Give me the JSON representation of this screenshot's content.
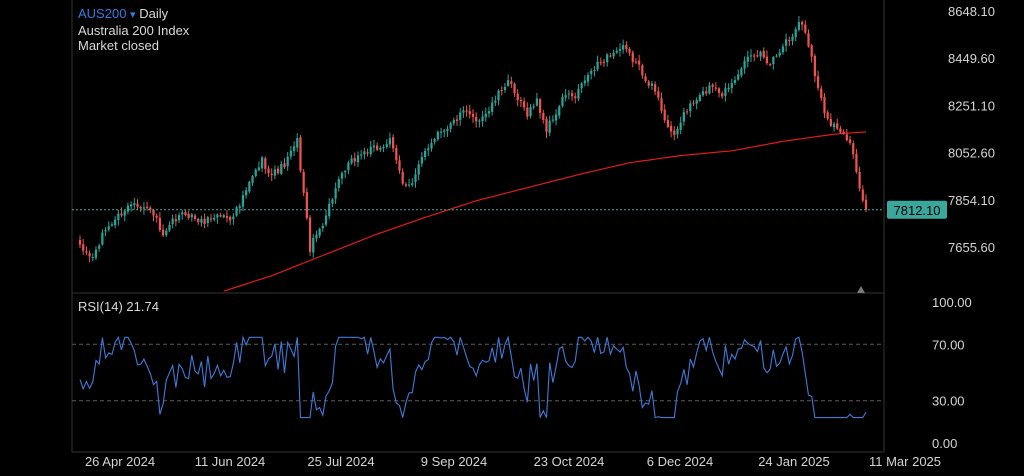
{
  "header": {
    "symbol": "AUS200",
    "dropdown_glyph": "▾",
    "interval": "Daily",
    "name": "Australia 200 Index",
    "status": "Market closed"
  },
  "rsi_header": {
    "label": "RSI(14)",
    "value": "21.74"
  },
  "colors": {
    "background": "#000000",
    "up": "#26a69a",
    "down": "#ef5350",
    "ma": "#e01b1b",
    "rsi": "#3d7bd9",
    "grid": "#2a2a2a",
    "price_tag": "#3aa79d"
  },
  "chart_data": [
    {
      "type": "candlestick",
      "title": "AUS200 · Daily",
      "subtitle": "Australia 200 Index",
      "x_ticks": [
        "26 Apr 2024",
        "11 Jun 2024",
        "25 Jul 2024",
        "9 Sep 2024",
        "23 Oct 2024",
        "6 Dec 2024",
        "24 Jan 2025",
        "11 Mar 2025"
      ],
      "y_ticks": [
        "8648.10",
        "8449.60",
        "8251.10",
        "8052.60",
        "7854.10",
        "7655.60"
      ],
      "ylim": [
        7470,
        8700
      ],
      "last_price": "7812.10",
      "grid": true,
      "anchors": [
        [
          0,
          7650
        ],
        [
          4,
          7610
        ],
        [
          8,
          7730
        ],
        [
          13,
          7800
        ],
        [
          17,
          7850
        ],
        [
          19,
          7830
        ],
        [
          23,
          7800
        ],
        [
          26,
          7690
        ],
        [
          29,
          7760
        ],
        [
          33,
          7800
        ],
        [
          38,
          7760
        ],
        [
          43,
          7790
        ],
        [
          47,
          7780
        ],
        [
          50,
          7830
        ],
        [
          54,
          7950
        ],
        [
          57,
          8020
        ],
        [
          60,
          7960
        ],
        [
          64,
          8000
        ],
        [
          68,
          8100
        ],
        [
          70,
          7880
        ],
        [
          72,
          7650
        ],
        [
          76,
          7760
        ],
        [
          80,
          7900
        ],
        [
          84,
          8000
        ],
        [
          88,
          8050
        ],
        [
          93,
          8070
        ],
        [
          97,
          8100
        ],
        [
          101,
          7930
        ],
        [
          104,
          7920
        ],
        [
          108,
          8060
        ],
        [
          112,
          8140
        ],
        [
          116,
          8170
        ],
        [
          120,
          8220
        ],
        [
          124,
          8190
        ],
        [
          128,
          8230
        ],
        [
          132,
          8320
        ],
        [
          134,
          8360
        ],
        [
          136,
          8290
        ],
        [
          140,
          8220
        ],
        [
          143,
          8270
        ],
        [
          146,
          8150
        ],
        [
          149,
          8220
        ],
        [
          152,
          8300
        ],
        [
          155,
          8280
        ],
        [
          158,
          8360
        ],
        [
          162,
          8420
        ],
        [
          166,
          8470
        ],
        [
          170,
          8490
        ],
        [
          174,
          8430
        ],
        [
          177,
          8370
        ],
        [
          180,
          8310
        ],
        [
          183,
          8200
        ],
        [
          186,
          8110
        ],
        [
          189,
          8220
        ],
        [
          192,
          8260
        ],
        [
          195,
          8300
        ],
        [
          198,
          8340
        ],
        [
          201,
          8300
        ],
        [
          204,
          8350
        ],
        [
          207,
          8420
        ],
        [
          210,
          8450
        ],
        [
          213,
          8470
        ],
        [
          216,
          8430
        ],
        [
          220,
          8510
        ],
        [
          223,
          8540
        ],
        [
          225,
          8610
        ],
        [
          227,
          8560
        ],
        [
          229,
          8460
        ],
        [
          231,
          8320
        ],
        [
          233,
          8230
        ],
        [
          235,
          8180
        ],
        [
          237,
          8160
        ],
        [
          239,
          8120
        ],
        [
          241,
          8090
        ],
        [
          243,
          7970
        ],
        [
          246,
          7812
        ]
      ],
      "ma_anchors": [
        [
          45,
          7470
        ],
        [
          60,
          7535
        ],
        [
          76,
          7620
        ],
        [
          92,
          7705
        ],
        [
          108,
          7780
        ],
        [
          124,
          7850
        ],
        [
          140,
          7905
        ],
        [
          156,
          7960
        ],
        [
          172,
          8010
        ],
        [
          188,
          8040
        ],
        [
          204,
          8060
        ],
        [
          220,
          8100
        ],
        [
          236,
          8130
        ],
        [
          246,
          8140
        ]
      ]
    },
    {
      "type": "line",
      "title": "RSI(14)",
      "y_ticks": [
        "100.00",
        "70.00",
        "30.00",
        "0.00"
      ],
      "ylim": [
        0,
        100
      ],
      "bands": [
        70,
        30
      ],
      "last_value": 21.74
    }
  ]
}
